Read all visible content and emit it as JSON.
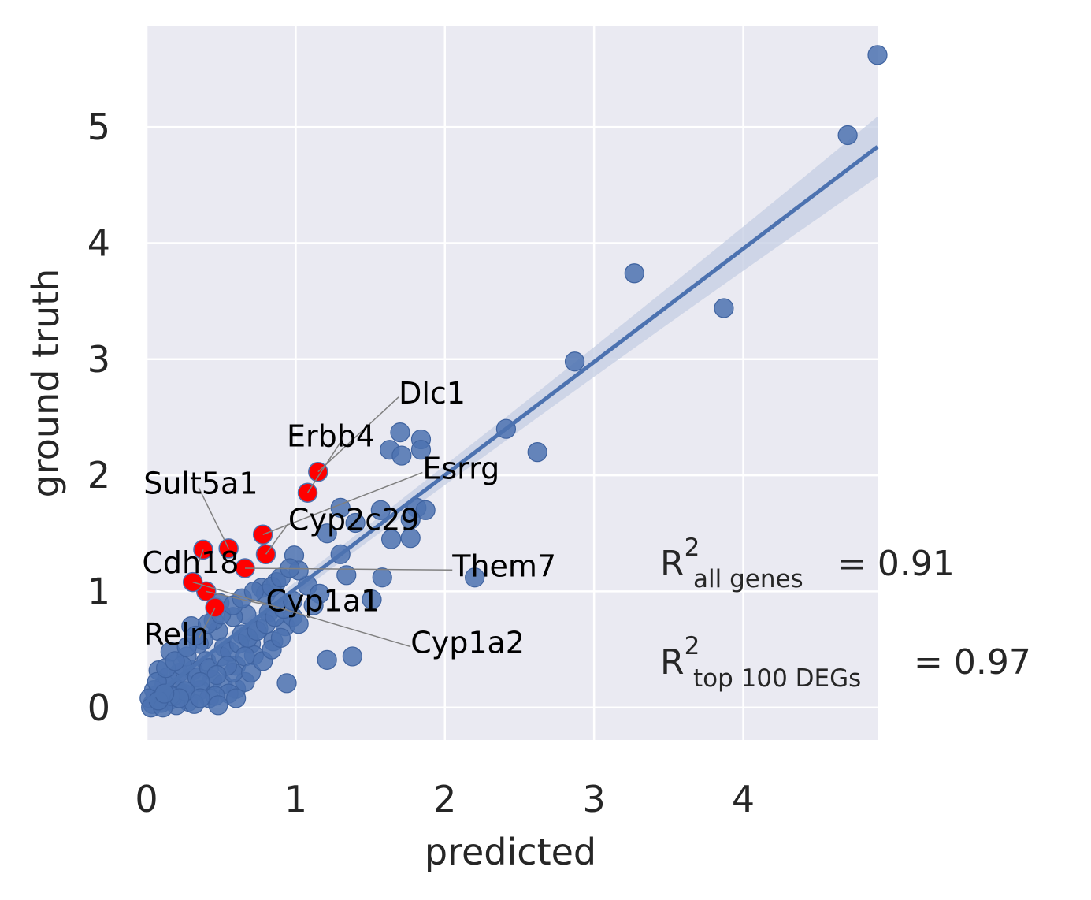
{
  "chart_data": {
    "type": "scatter",
    "title": "",
    "xlabel": "predicted",
    "ylabel": "ground truth",
    "xlim": [
      0,
      4.9
    ],
    "ylim": [
      -0.28,
      5.87
    ],
    "x_ticks": [
      0,
      1,
      2,
      3,
      4
    ],
    "y_ticks": [
      0,
      1,
      2,
      3,
      4,
      5
    ],
    "x_tick_labels": [
      "0",
      "1",
      "2",
      "3",
      "4"
    ],
    "y_tick_labels": [
      "0",
      "1",
      "2",
      "3",
      "4",
      "5"
    ],
    "grid": true,
    "colors": {
      "background": "#eaeaf2",
      "grid": "#ffffff",
      "points": "#4c72b0",
      "highlight": "#ff0000",
      "fit_band": "#c4cde3",
      "annotation_line": "#808080"
    },
    "regression_line": {
      "x": [
        0,
        4.9
      ],
      "y": [
        0.05,
        4.83
      ]
    },
    "points": [
      [
        4.9,
        5.62
      ],
      [
        4.7,
        4.93
      ],
      [
        3.27,
        3.74
      ],
      [
        3.87,
        3.44
      ],
      [
        2.87,
        2.98
      ],
      [
        2.41,
        2.4
      ],
      [
        2.62,
        2.2
      ],
      [
        2.2,
        1.12
      ],
      [
        1.7,
        2.37
      ],
      [
        1.84,
        2.31
      ],
      [
        1.63,
        2.22
      ],
      [
        1.71,
        2.17
      ],
      [
        1.84,
        2.22
      ],
      [
        1.81,
        1.72
      ],
      [
        1.87,
        1.7
      ],
      [
        1.57,
        1.7
      ],
      [
        1.77,
        1.62
      ],
      [
        1.77,
        1.46
      ],
      [
        1.64,
        1.45
      ],
      [
        1.58,
        1.12
      ],
      [
        1.51,
        0.93
      ],
      [
        1.21,
        1.5
      ],
      [
        1.3,
        1.72
      ],
      [
        1.4,
        1.59
      ],
      [
        1.3,
        1.32
      ],
      [
        1.34,
        1.14
      ],
      [
        1.21,
        0.41
      ],
      [
        1.38,
        0.44
      ],
      [
        1.08,
        1.05
      ],
      [
        1.16,
        0.98
      ],
      [
        0.93,
        0.7
      ],
      [
        0.98,
        0.78
      ],
      [
        1.02,
        0.72
      ],
      [
        1.12,
        0.88
      ],
      [
        0.99,
        1.31
      ],
      [
        1.02,
        1.18
      ],
      [
        0.94,
        0.21
      ],
      [
        0.6,
        0.16
      ],
      [
        0.44,
        0.24
      ],
      [
        0.3,
        0.7
      ],
      [
        0.16,
        0.48
      ],
      [
        0.77,
        1.03
      ],
      [
        0.87,
        1.08
      ],
      [
        0.7,
        0.55
      ],
      [
        0.85,
        0.57
      ],
      [
        0.8,
        0.98
      ],
      [
        0.6,
        0.36
      ],
      [
        0.51,
        0.2
      ],
      [
        0.36,
        0.15
      ],
      [
        0.25,
        0.12
      ],
      [
        0.67,
        0.8
      ],
      [
        0.58,
        0.78
      ],
      [
        0.49,
        0.9
      ],
      [
        0.48,
        0.66
      ],
      [
        0.52,
        0.52
      ],
      [
        0.4,
        0.4
      ],
      [
        0.31,
        0.32
      ],
      [
        0.22,
        0.3
      ],
      [
        0.12,
        0.2
      ],
      [
        0.06,
        0.1
      ],
      [
        0.04,
        0.03
      ],
      [
        0.15,
        0.06
      ],
      [
        0.28,
        0.05
      ],
      [
        0.42,
        0.08
      ],
      [
        0.55,
        0.12
      ],
      [
        0.66,
        0.22
      ],
      [
        0.72,
        0.45
      ],
      [
        0.38,
        0.58
      ],
      [
        0.27,
        0.44
      ],
      [
        0.2,
        0.16
      ],
      [
        0.08,
        0.32
      ],
      [
        0.1,
        0.04
      ],
      [
        0.2,
        0.02
      ],
      [
        0.32,
        0.03
      ],
      [
        0.46,
        0.1
      ],
      [
        0.58,
        0.3
      ],
      [
        0.64,
        0.63
      ],
      [
        0.75,
        0.68
      ],
      [
        0.82,
        0.82
      ],
      [
        0.88,
        0.92
      ],
      [
        0.45,
        0.75
      ],
      [
        0.35,
        0.55
      ],
      [
        0.24,
        0.36
      ],
      [
        0.14,
        0.26
      ],
      [
        0.05,
        0.15
      ],
      [
        0.02,
        0.08
      ],
      [
        0.03,
        0.0
      ],
      [
        0.11,
        0.0
      ],
      [
        0.18,
        0.1
      ],
      [
        0.26,
        0.2
      ],
      [
        0.34,
        0.26
      ],
      [
        0.42,
        0.34
      ],
      [
        0.5,
        0.44
      ],
      [
        0.56,
        0.48
      ],
      [
        0.62,
        0.55
      ],
      [
        0.68,
        0.6
      ],
      [
        0.74,
        0.66
      ],
      [
        0.8,
        0.72
      ],
      [
        0.86,
        0.78
      ],
      [
        0.92,
        0.85
      ],
      [
        0.98,
        0.92
      ],
      [
        0.66,
        0.44
      ],
      [
        0.54,
        0.36
      ],
      [
        0.47,
        0.28
      ],
      [
        0.36,
        0.22
      ],
      [
        0.26,
        0.14
      ],
      [
        0.16,
        0.1
      ],
      [
        0.08,
        0.06
      ],
      [
        0.07,
        0.22
      ],
      [
        0.13,
        0.34
      ],
      [
        0.19,
        0.4
      ],
      [
        0.27,
        0.52
      ],
      [
        0.33,
        0.62
      ],
      [
        0.41,
        0.72
      ],
      [
        0.5,
        0.8
      ],
      [
        0.58,
        0.88
      ],
      [
        0.64,
        0.94
      ],
      [
        0.72,
        1.0
      ],
      [
        0.84,
        1.04
      ],
      [
        0.9,
        1.12
      ],
      [
        0.96,
        1.2
      ],
      [
        0.7,
        0.3
      ],
      [
        0.78,
        0.4
      ],
      [
        0.84,
        0.5
      ],
      [
        0.9,
        0.6
      ],
      [
        0.6,
        0.08
      ],
      [
        0.48,
        0.02
      ],
      [
        0.36,
        0.08
      ],
      [
        0.22,
        0.08
      ],
      [
        0.12,
        0.12
      ]
    ],
    "highlighted": [
      {
        "gene": "Dlc1",
        "x": 1.15,
        "y": 2.03
      },
      {
        "gene": "Erbb4",
        "x": 1.08,
        "y": 1.85
      },
      {
        "gene": "Esrrg",
        "x": 0.78,
        "y": 1.49
      },
      {
        "gene": "Cyp2c29",
        "x": 0.8,
        "y": 1.32
      },
      {
        "gene": "Sult5a1",
        "x": 0.55,
        "y": 1.37
      },
      {
        "gene": "Cdh18",
        "x": 0.38,
        "y": 1.36
      },
      {
        "gene": "Them7",
        "x": 0.66,
        "y": 1.2
      },
      {
        "gene": "Cyp1a1",
        "x": 0.4,
        "y": 1.0
      },
      {
        "gene": "Cyp1a2",
        "x": 0.31,
        "y": 1.08
      },
      {
        "gene": "Reln",
        "x": 0.46,
        "y": 0.86
      }
    ],
    "annotations": [
      {
        "text": "Dlc1",
        "tx": 1.69,
        "ty": 2.62,
        "px": 1.15,
        "py": 2.03
      },
      {
        "text": "Erbb4",
        "tx": 0.94,
        "ty": 2.25,
        "px": 1.08,
        "py": 1.85
      },
      {
        "text": "Esrrg",
        "tx": 1.85,
        "ty": 1.97,
        "px": 0.78,
        "py": 1.49
      },
      {
        "text": "Cyp2c29",
        "tx": 0.95,
        "ty": 1.53,
        "px": 0.8,
        "py": 1.32
      },
      {
        "text": "Sult5a1",
        "tx": -0.02,
        "ty": 1.84,
        "px": 0.55,
        "py": 1.37
      },
      {
        "text": "Cdh18",
        "tx": -0.03,
        "ty": 1.16,
        "px": 0.38,
        "py": 1.36
      },
      {
        "text": "Them7",
        "tx": 2.05,
        "ty": 1.13,
        "px": 0.66,
        "py": 1.2
      },
      {
        "text": "Cyp1a1",
        "tx": 0.8,
        "ty": 0.83,
        "px": 0.4,
        "py": 1.0
      },
      {
        "text": "Cyp1a2",
        "tx": 1.77,
        "ty": 0.47,
        "px": 0.31,
        "py": 1.08
      },
      {
        "text": "Reln",
        "tx": -0.02,
        "ty": 0.54,
        "px": 0.46,
        "py": 0.86
      }
    ],
    "r2_all": {
      "symbol": "R",
      "sup": "2",
      "sub": "all genes",
      "value": "= 0.91"
    },
    "r2_top": {
      "symbol": "R",
      "sup": "2",
      "sub": "top 100 DEGs",
      "value": "= 0.97"
    }
  }
}
